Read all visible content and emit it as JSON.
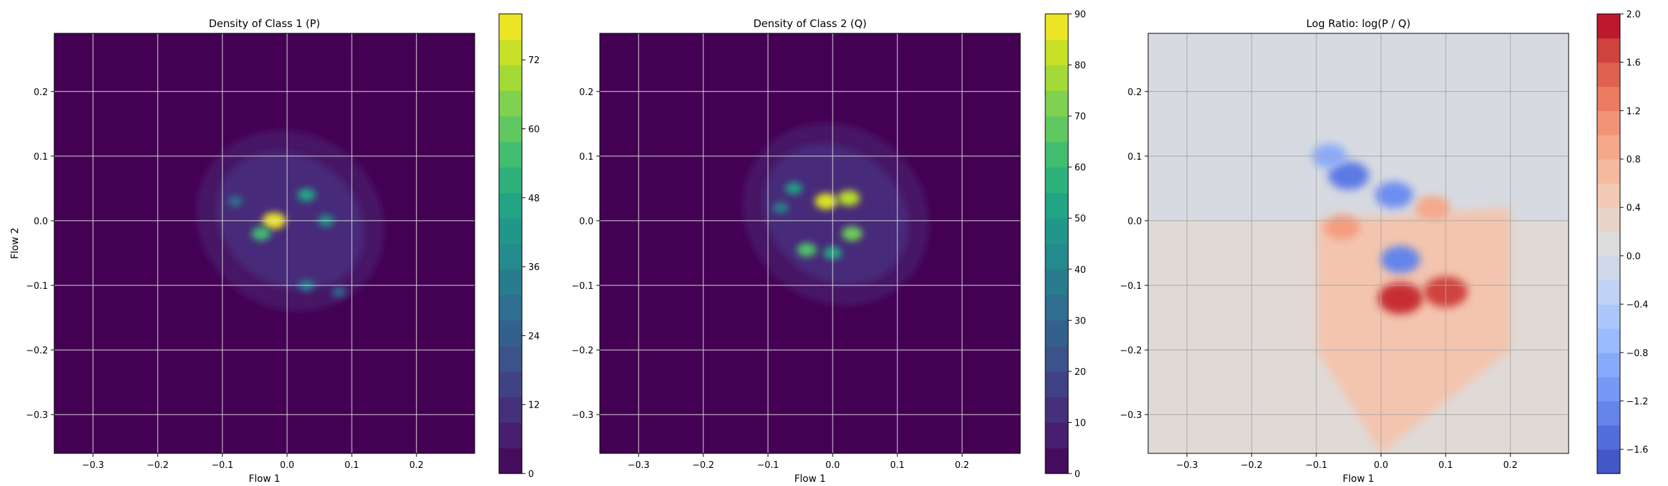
{
  "chart_data": [
    {
      "type": "heatmap",
      "title": "Density of Class 1 (P)",
      "xlabel": "Flow 1",
      "ylabel": "Flow 2",
      "xlim": [
        -0.36,
        0.29
      ],
      "ylim": [
        -0.36,
        0.29
      ],
      "xticks": [
        "−0.3",
        "−0.2",
        "−0.1",
        "0.0",
        "0.1",
        "0.2"
      ],
      "yticks": [
        "−0.3",
        "−0.2",
        "−0.1",
        "0.0",
        "0.1",
        "0.2"
      ],
      "grid": true,
      "colormap": "viridis",
      "colorbar": {
        "min": 0,
        "max": 80,
        "ticks": [
          0,
          12,
          24,
          36,
          48,
          60,
          72
        ]
      },
      "peaks": [
        {
          "x": -0.02,
          "y": 0.0,
          "value": 78
        },
        {
          "x": -0.04,
          "y": -0.02,
          "value": 55
        },
        {
          "x": 0.03,
          "y": 0.04,
          "value": 48
        },
        {
          "x": 0.06,
          "y": 0.0,
          "value": 40
        },
        {
          "x": -0.08,
          "y": 0.03,
          "value": 30
        },
        {
          "x": 0.03,
          "y": -0.1,
          "value": 35
        },
        {
          "x": 0.08,
          "y": -0.11,
          "value": 28
        }
      ]
    },
    {
      "type": "heatmap",
      "title": "Density of Class 2 (Q)",
      "xlabel": "Flow 1",
      "ylabel": "",
      "xlim": [
        -0.36,
        0.29
      ],
      "ylim": [
        -0.36,
        0.29
      ],
      "xticks": [
        "−0.3",
        "−0.2",
        "−0.1",
        "0.0",
        "0.1",
        "0.2"
      ],
      "yticks": [
        "−0.3",
        "−0.2",
        "−0.1",
        "0.0",
        "0.1",
        "0.2"
      ],
      "grid": true,
      "colormap": "viridis",
      "colorbar": {
        "min": 0,
        "max": 90,
        "ticks": [
          0,
          10,
          20,
          30,
          40,
          50,
          60,
          70,
          80,
          90
        ]
      },
      "peaks": [
        {
          "x": -0.01,
          "y": 0.03,
          "value": 85
        },
        {
          "x": 0.025,
          "y": 0.035,
          "value": 80
        },
        {
          "x": 0.03,
          "y": -0.02,
          "value": 70
        },
        {
          "x": -0.04,
          "y": -0.045,
          "value": 65
        },
        {
          "x": -0.06,
          "y": 0.05,
          "value": 50
        },
        {
          "x": 0.0,
          "y": -0.05,
          "value": 55
        },
        {
          "x": -0.08,
          "y": 0.02,
          "value": 40
        }
      ]
    },
    {
      "type": "heatmap",
      "title": "Log Ratio: log(P / Q)",
      "xlabel": "Flow 1",
      "ylabel": "",
      "xlim": [
        -0.36,
        0.29
      ],
      "ylim": [
        -0.36,
        0.29
      ],
      "xticks": [
        "−0.3",
        "−0.2",
        "−0.1",
        "0.0",
        "0.1",
        "0.2"
      ],
      "yticks": [
        "−0.3",
        "−0.2",
        "−0.1",
        "0.0",
        "0.1",
        "0.2"
      ],
      "grid": true,
      "colormap": "coolwarm",
      "colorbar": {
        "min": -1.8,
        "max": 2.0,
        "ticks": [
          "−1.6",
          "−1.2",
          "−0.8",
          "−0.4",
          "0.0",
          "0.4",
          "0.8",
          "1.2",
          "1.6",
          "2.0"
        ]
      },
      "features": [
        {
          "x": -0.05,
          "y": 0.07,
          "value": -1.4
        },
        {
          "x": 0.02,
          "y": 0.04,
          "value": -1.2
        },
        {
          "x": 0.03,
          "y": -0.06,
          "value": -1.3
        },
        {
          "x": -0.08,
          "y": 0.1,
          "value": -0.9
        },
        {
          "x": 0.03,
          "y": -0.12,
          "value": 1.8
        },
        {
          "x": 0.1,
          "y": -0.11,
          "value": 1.7
        },
        {
          "x": -0.06,
          "y": -0.01,
          "value": 1.0
        },
        {
          "x": 0.08,
          "y": 0.02,
          "value": 0.9
        }
      ]
    }
  ]
}
